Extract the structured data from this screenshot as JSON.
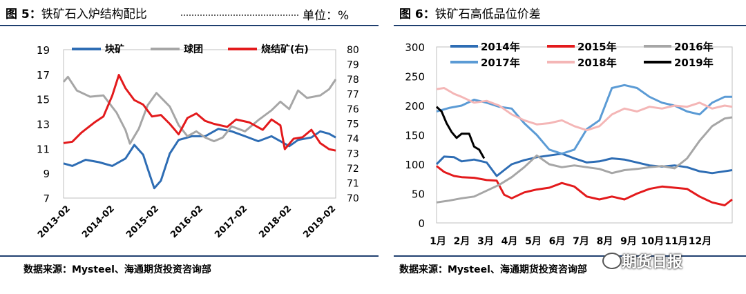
{
  "left": {
    "title_prefix": "图 5：",
    "title_text": "铁矿石入炉结构配比",
    "unit_label": "单位：%",
    "source": "数据来源：Mysteel、海通期货投资咨询部"
  },
  "right": {
    "title_prefix": "图 6：",
    "title_text": "铁矿石高低品位价差",
    "source": "数据来源：Mysteel、海通期货投资咨询部"
  },
  "watermark": "期货日报",
  "chart_data": [
    {
      "type": "line",
      "title": "铁矿石入炉结构配比",
      "x_ticks": [
        "2013-02",
        "2014-02",
        "2015-02",
        "2016-02",
        "2017-02",
        "2018-02",
        "2019-02"
      ],
      "ylim": [
        7,
        19
      ],
      "y_ticks": [
        7,
        9,
        11,
        13,
        15,
        17,
        19
      ],
      "y2lim": [
        70,
        80
      ],
      "y2_ticks": [
        70,
        71,
        72,
        73,
        74,
        75,
        76,
        77,
        78,
        79,
        80
      ],
      "legend_position": "top",
      "colors": {
        "块矿": "#2e6db4",
        "球团": "#a6a6a6",
        "烧结矿(右)": "#e31a1c"
      },
      "series": [
        {
          "name": "块矿",
          "axis": "left",
          "points": [
            [
              2013.1,
              9.8
            ],
            [
              2013.3,
              9.6
            ],
            [
              2013.6,
              10.1
            ],
            [
              2013.9,
              9.9
            ],
            [
              2014.2,
              9.6
            ],
            [
              2014.5,
              10.2
            ],
            [
              2014.7,
              11.3
            ],
            [
              2014.9,
              10.5
            ],
            [
              2015.0,
              9.4
            ],
            [
              2015.15,
              7.8
            ],
            [
              2015.3,
              8.4
            ],
            [
              2015.5,
              10.6
            ],
            [
              2015.7,
              11.7
            ],
            [
              2016.0,
              12.0
            ],
            [
              2016.3,
              12.0
            ],
            [
              2016.6,
              12.6
            ],
            [
              2016.9,
              12.4
            ],
            [
              2017.2,
              12.0
            ],
            [
              2017.5,
              11.6
            ],
            [
              2017.8,
              12.0
            ],
            [
              2018.0,
              11.6
            ],
            [
              2018.2,
              11.2
            ],
            [
              2018.4,
              11.7
            ],
            [
              2018.7,
              11.9
            ],
            [
              2018.9,
              12.4
            ],
            [
              2019.1,
              12.2
            ],
            [
              2019.25,
              11.9
            ]
          ]
        },
        {
          "name": "球团",
          "axis": "left",
          "points": [
            [
              2013.1,
              16.4
            ],
            [
              2013.2,
              16.8
            ],
            [
              2013.4,
              15.7
            ],
            [
              2013.7,
              15.2
            ],
            [
              2014.0,
              15.3
            ],
            [
              2014.3,
              13.9
            ],
            [
              2014.5,
              12.5
            ],
            [
              2014.6,
              11.4
            ],
            [
              2014.8,
              12.6
            ],
            [
              2015.0,
              14.5
            ],
            [
              2015.2,
              15.5
            ],
            [
              2015.5,
              14.4
            ],
            [
              2015.7,
              12.9
            ],
            [
              2015.9,
              12.0
            ],
            [
              2016.1,
              12.4
            ],
            [
              2016.3,
              11.9
            ],
            [
              2016.5,
              11.6
            ],
            [
              2016.7,
              11.9
            ],
            [
              2016.9,
              12.8
            ],
            [
              2017.2,
              12.4
            ],
            [
              2017.5,
              13.3
            ],
            [
              2017.8,
              14.1
            ],
            [
              2018.0,
              14.8
            ],
            [
              2018.2,
              14.2
            ],
            [
              2018.4,
              15.7
            ],
            [
              2018.6,
              15.1
            ],
            [
              2018.9,
              15.3
            ],
            [
              2019.1,
              15.8
            ],
            [
              2019.25,
              16.6
            ]
          ]
        },
        {
          "name": "烧结矿(右)",
          "axis": "right",
          "points": [
            [
              2013.1,
              73.7
            ],
            [
              2013.3,
              73.8
            ],
            [
              2013.5,
              74.4
            ],
            [
              2013.8,
              75.1
            ],
            [
              2014.0,
              75.5
            ],
            [
              2014.2,
              76.9
            ],
            [
              2014.35,
              78.3
            ],
            [
              2014.5,
              77.4
            ],
            [
              2014.7,
              76.6
            ],
            [
              2014.9,
              76.3
            ],
            [
              2015.1,
              75.5
            ],
            [
              2015.3,
              75.6
            ],
            [
              2015.5,
              75.0
            ],
            [
              2015.7,
              74.3
            ],
            [
              2015.9,
              75.4
            ],
            [
              2016.1,
              75.7
            ],
            [
              2016.3,
              75.2
            ],
            [
              2016.5,
              75.0
            ],
            [
              2016.8,
              74.8
            ],
            [
              2017.0,
              75.3
            ],
            [
              2017.3,
              75.1
            ],
            [
              2017.6,
              74.6
            ],
            [
              2017.8,
              75.3
            ],
            [
              2018.0,
              74.9
            ],
            [
              2018.1,
              73.3
            ],
            [
              2018.3,
              74.0
            ],
            [
              2018.5,
              74.1
            ],
            [
              2018.7,
              74.6
            ],
            [
              2018.9,
              73.7
            ],
            [
              2019.1,
              73.3
            ],
            [
              2019.25,
              73.2
            ]
          ]
        }
      ]
    },
    {
      "type": "line",
      "title": "铁矿石高低品位价差",
      "x_ticks": [
        "1月",
        "2月",
        "3月",
        "4月",
        "5月",
        "6月",
        "7月",
        "8月",
        "9月",
        "10月",
        "11月",
        "12月"
      ],
      "ylim": [
        0,
        300
      ],
      "y_ticks": [
        0,
        50,
        100,
        150,
        200,
        250,
        300
      ],
      "legend_position": "top",
      "colors": {
        "2014年": "#2e6db4",
        "2015年": "#e31a1c",
        "2016年": "#a6a6a6",
        "2017年": "#5b9bd5",
        "2018年": "#f4b6b6",
        "2019年": "#000000"
      },
      "series": [
        {
          "name": "2014年",
          "points": [
            [
              1.0,
              100
            ],
            [
              1.3,
              113
            ],
            [
              1.7,
              112
            ],
            [
              2.0,
              105
            ],
            [
              2.5,
              108
            ],
            [
              3.0,
              103
            ],
            [
              3.4,
              80
            ],
            [
              3.7,
              90
            ],
            [
              4.0,
              100
            ],
            [
              4.5,
              107
            ],
            [
              5.0,
              112
            ],
            [
              5.5,
              115
            ],
            [
              6.0,
              118
            ],
            [
              6.5,
              110
            ],
            [
              7.0,
              103
            ],
            [
              7.5,
              105
            ],
            [
              8.0,
              110
            ],
            [
              8.5,
              108
            ],
            [
              9.0,
              103
            ],
            [
              9.5,
              98
            ],
            [
              10.0,
              96
            ],
            [
              10.5,
              98
            ],
            [
              11.0,
              95
            ],
            [
              11.5,
              88
            ],
            [
              12.0,
              85
            ],
            [
              12.5,
              88
            ],
            [
              12.8,
              90
            ]
          ]
        },
        {
          "name": "2015年",
          "points": [
            [
              1.0,
              97
            ],
            [
              1.3,
              87
            ],
            [
              1.7,
              80
            ],
            [
              2.0,
              78
            ],
            [
              2.5,
              77
            ],
            [
              3.0,
              73
            ],
            [
              3.4,
              72
            ],
            [
              3.7,
              48
            ],
            [
              4.0,
              42
            ],
            [
              4.5,
              52
            ],
            [
              5.0,
              57
            ],
            [
              5.5,
              60
            ],
            [
              6.0,
              68
            ],
            [
              6.5,
              62
            ],
            [
              7.0,
              45
            ],
            [
              7.5,
              40
            ],
            [
              8.0,
              45
            ],
            [
              8.5,
              40
            ],
            [
              9.0,
              50
            ],
            [
              9.5,
              58
            ],
            [
              10.0,
              62
            ],
            [
              10.5,
              60
            ],
            [
              11.0,
              58
            ],
            [
              11.5,
              45
            ],
            [
              12.0,
              35
            ],
            [
              12.5,
              30
            ],
            [
              12.8,
              40
            ]
          ]
        },
        {
          "name": "2016年",
          "points": [
            [
              1.0,
              35
            ],
            [
              1.5,
              38
            ],
            [
              2.0,
              42
            ],
            [
              2.5,
              45
            ],
            [
              3.0,
              55
            ],
            [
              3.5,
              65
            ],
            [
              4.0,
              78
            ],
            [
              4.5,
              95
            ],
            [
              5.0,
              115
            ],
            [
              5.5,
              100
            ],
            [
              6.0,
              95
            ],
            [
              6.5,
              98
            ],
            [
              7.0,
              95
            ],
            [
              7.5,
              92
            ],
            [
              8.0,
              85
            ],
            [
              8.5,
              90
            ],
            [
              9.0,
              92
            ],
            [
              9.5,
              95
            ],
            [
              10.0,
              97
            ],
            [
              10.5,
              93
            ],
            [
              11.0,
              110
            ],
            [
              11.5,
              140
            ],
            [
              12.0,
              165
            ],
            [
              12.5,
              178
            ],
            [
              12.8,
              180
            ]
          ]
        },
        {
          "name": "2017年",
          "points": [
            [
              1.0,
              190
            ],
            [
              1.5,
              196
            ],
            [
              2.0,
              200
            ],
            [
              2.5,
              210
            ],
            [
              3.0,
              205
            ],
            [
              3.5,
              198
            ],
            [
              4.0,
              195
            ],
            [
              4.5,
              170
            ],
            [
              5.0,
              150
            ],
            [
              5.5,
              125
            ],
            [
              6.0,
              118
            ],
            [
              6.5,
              125
            ],
            [
              7.0,
              160
            ],
            [
              7.5,
              175
            ],
            [
              8.0,
              230
            ],
            [
              8.5,
              235
            ],
            [
              9.0,
              230
            ],
            [
              9.5,
              215
            ],
            [
              10.0,
              205
            ],
            [
              10.5,
              200
            ],
            [
              11.0,
              190
            ],
            [
              11.5,
              185
            ],
            [
              12.0,
              205
            ],
            [
              12.5,
              215
            ],
            [
              12.8,
              215
            ]
          ]
        },
        {
          "name": "2018年",
          "points": [
            [
              1.0,
              228
            ],
            [
              1.3,
              230
            ],
            [
              1.7,
              220
            ],
            [
              2.0,
              215
            ],
            [
              2.5,
              205
            ],
            [
              3.0,
              208
            ],
            [
              3.5,
              200
            ],
            [
              4.0,
              185
            ],
            [
              4.5,
              175
            ],
            [
              5.0,
              168
            ],
            [
              5.5,
              170
            ],
            [
              6.0,
              175
            ],
            [
              6.5,
              165
            ],
            [
              7.0,
              158
            ],
            [
              7.5,
              165
            ],
            [
              8.0,
              185
            ],
            [
              8.5,
              195
            ],
            [
              9.0,
              190
            ],
            [
              9.5,
              198
            ],
            [
              10.0,
              195
            ],
            [
              10.5,
              200
            ],
            [
              11.0,
              198
            ],
            [
              11.5,
              205
            ],
            [
              12.0,
              195
            ],
            [
              12.5,
              200
            ],
            [
              12.8,
              198
            ]
          ]
        },
        {
          "name": "2019年",
          "points": [
            [
              1.0,
              198
            ],
            [
              1.2,
              190
            ],
            [
              1.4,
              170
            ],
            [
              1.6,
              155
            ],
            [
              1.8,
              145
            ],
            [
              2.0,
              152
            ],
            [
              2.3,
              152
            ],
            [
              2.5,
              130
            ],
            [
              2.7,
              125
            ],
            [
              2.9,
              110
            ]
          ]
        }
      ]
    }
  ]
}
